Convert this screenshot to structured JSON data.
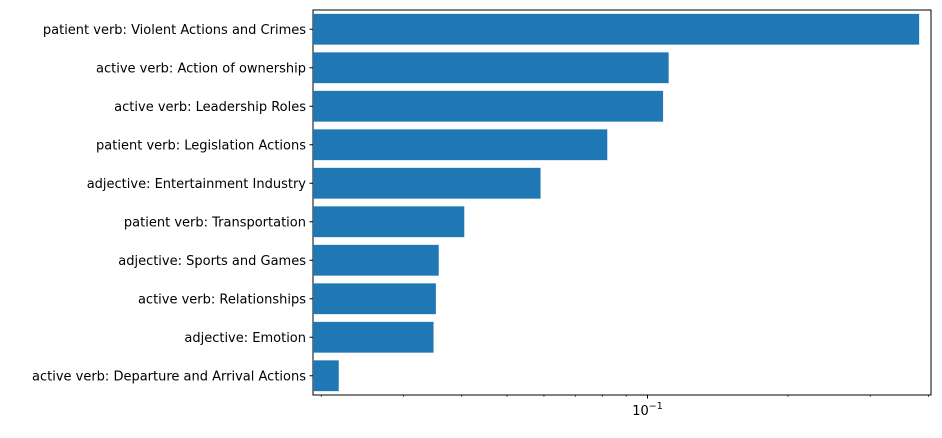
{
  "chart_data": {
    "type": "bar",
    "orientation": "horizontal",
    "categories": [
      "patient verb: Violent Actions and Crimes",
      "active verb: Action of ownership",
      "active verb: Leadership Roles",
      "patient verb: Legislation Actions",
      "adjective: Entertainment Industry",
      "patient verb: Transportation",
      "adjective: Sports and Games",
      "active verb: Relationships",
      "adjective: Emotion",
      "active verb: Departure and Arrival Actions"
    ],
    "values": [
      0.382,
      0.111,
      0.108,
      0.082,
      0.059,
      0.0405,
      0.0357,
      0.0352,
      0.0348,
      0.0218
    ],
    "bar_color": "#1f77b4",
    "x_scale": "log",
    "xlim": [
      0.0192,
      0.405
    ],
    "x_tick_labels": [
      {
        "value": 0.1,
        "label": "10",
        "exponent": "−1"
      }
    ],
    "title": "",
    "xlabel": "",
    "ylabel": "",
    "grid": false,
    "legend": "none"
  }
}
